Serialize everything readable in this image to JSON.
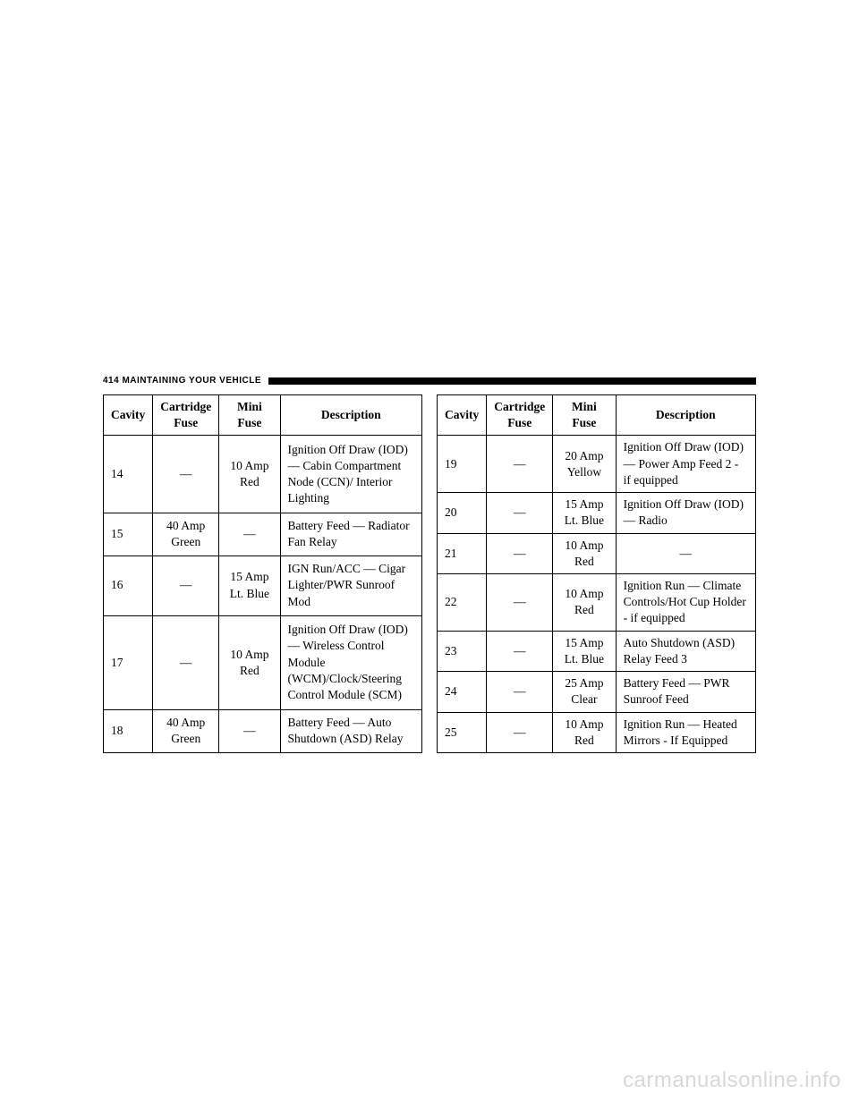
{
  "header": {
    "page_number": "414",
    "section_title": "MAINTAINING YOUR VEHICLE"
  },
  "columns": {
    "cavity": "Cavity",
    "cartridge": "Cartridge Fuse",
    "mini": "Mini Fuse",
    "desc": "Description"
  },
  "left_table_rows": [
    {
      "cavity": "14",
      "cartridge": "—",
      "mini": "10 Amp Red",
      "desc": "Ignition Off Draw (IOD) — Cabin Compartment Node (CCN)/ Interior Lighting"
    },
    {
      "cavity": "15",
      "cartridge": "40 Amp Green",
      "mini": "—",
      "desc": "Battery Feed — Radiator Fan Relay"
    },
    {
      "cavity": "16",
      "cartridge": "—",
      "mini": "15 Amp Lt. Blue",
      "desc": "IGN Run/ACC — Cigar Lighter/PWR Sunroof Mod"
    },
    {
      "cavity": "17",
      "cartridge": "—",
      "mini": "10 Amp Red",
      "desc": "Ignition Off Draw (IOD) — Wireless Control Module (WCM)/Clock/Steering Control Module (SCM)"
    },
    {
      "cavity": "18",
      "cartridge": "40 Amp Green",
      "mini": "—",
      "desc": "Battery Feed — Auto Shutdown (ASD) Relay"
    }
  ],
  "right_table_rows": [
    {
      "cavity": "19",
      "cartridge": "—",
      "mini": "20 Amp Yellow",
      "desc": "Ignition Off Draw (IOD) — Power Amp Feed 2 - if equipped"
    },
    {
      "cavity": "20",
      "cartridge": "—",
      "mini": "15 Amp Lt. Blue",
      "desc": "Ignition Off Draw (IOD) — Radio"
    },
    {
      "cavity": "21",
      "cartridge": "—",
      "mini": "10 Amp Red",
      "desc": "—"
    },
    {
      "cavity": "22",
      "cartridge": "—",
      "mini": "10 Amp Red",
      "desc": "Ignition Run — Climate Controls/Hot Cup Holder - if equipped"
    },
    {
      "cavity": "23",
      "cartridge": "—",
      "mini": "15 Amp Lt. Blue",
      "desc": "Auto Shutdown (ASD) Relay Feed 3"
    },
    {
      "cavity": "24",
      "cartridge": "—",
      "mini": "25 Amp Clear",
      "desc": "Battery Feed — PWR Sunroof Feed"
    },
    {
      "cavity": "25",
      "cartridge": "—",
      "mini": "10 Amp Red",
      "desc": "Ignition Run — Heated Mirrors - If Equipped"
    }
  ],
  "watermark": "carmanualsonline.info",
  "desc_center_values": [
    "—"
  ]
}
